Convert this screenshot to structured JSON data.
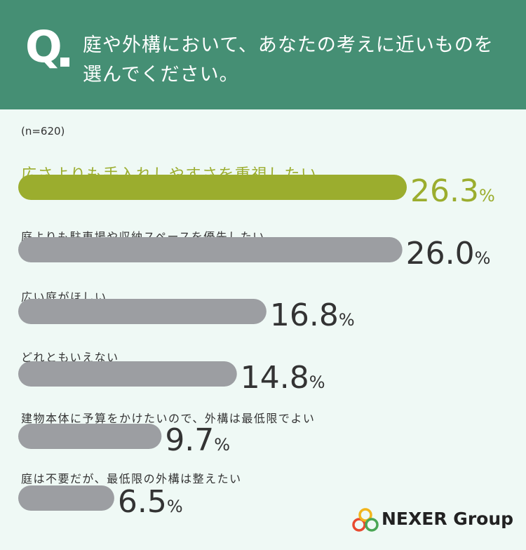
{
  "header": {
    "q_label": "Q",
    "question": "庭や外構において、あなたの考えに近いものを選んでください。"
  },
  "sample": "(n=620)",
  "chart_data": {
    "type": "bar",
    "orientation": "horizontal",
    "categories": [
      "広さよりも手入れしやすさを重視したい",
      "庭よりも駐車場や収納スペースを優先したい",
      "広い庭がほしい",
      "どれともいえない",
      "建物本体に予算をかけたいので、外構は最低限でよい",
      "庭は不要だが、最低限の外構は整えたい"
    ],
    "values": [
      26.3,
      26.0,
      16.8,
      14.8,
      9.7,
      6.5
    ],
    "unit": "%",
    "highlight_index": 0,
    "xlim": [
      0,
      26.3
    ],
    "grid": false
  },
  "colors": {
    "header_bg": "#458f74",
    "highlight_bar": "#9bad2e",
    "bar": "#9c9ea2",
    "value_text": "#333333",
    "label_text": "#333333"
  },
  "logo": {
    "text": "NEXER Group",
    "ring_colors": [
      "#e84a2f",
      "#f2b51b",
      "#4aa654"
    ]
  }
}
